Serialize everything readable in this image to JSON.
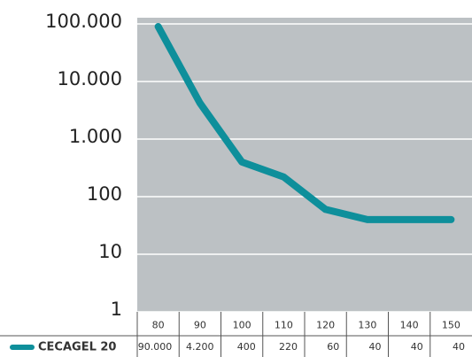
{
  "chart_data": {
    "type": "line",
    "categories": [
      "80",
      "90",
      "100",
      "110",
      "120",
      "130",
      "140",
      "150"
    ],
    "series": [
      {
        "name": "CECAGEL 20",
        "color": "#0e8f9b",
        "values": [
          90000,
          4200,
          400,
          220,
          60,
          40,
          40,
          40
        ],
        "value_labels": [
          "90.000",
          "4.200",
          "400",
          "220",
          "60",
          "40",
          "40",
          "40"
        ]
      }
    ],
    "log_scale": true,
    "ylim": [
      1,
      100000
    ],
    "yticks": [
      {
        "value": 1,
        "label": "1"
      },
      {
        "value": 10,
        "label": "10"
      },
      {
        "value": 100,
        "label": "100"
      },
      {
        "value": 1000,
        "label": "1.000"
      },
      {
        "value": 10000,
        "label": "10.000"
      },
      {
        "value": 100000,
        "label": "100.000"
      }
    ],
    "grid": true,
    "plot_background": "#bcc1c4"
  }
}
